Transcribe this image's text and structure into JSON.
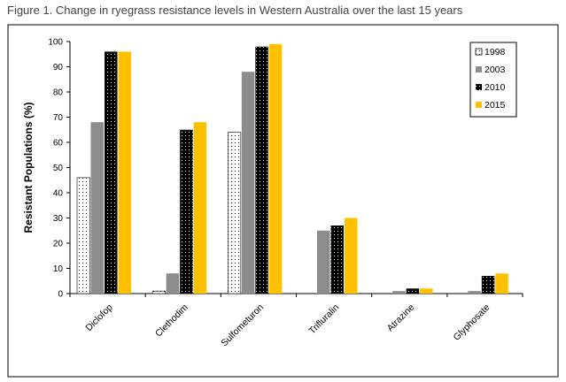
{
  "caption": "Figure 1. Change in ryegrass resistance levels in Western Australia over the last 15 years",
  "chart_data": {
    "type": "bar",
    "title": "",
    "xlabel": "",
    "ylabel": "Resistant Populations (%)",
    "ylim": [
      0,
      100
    ],
    "yticks": [
      0,
      10,
      20,
      30,
      40,
      50,
      60,
      70,
      80,
      90,
      100
    ],
    "categories": [
      "Diclofop",
      "Clethodim",
      "Sulfometuron",
      "Trifluralin",
      "Atrazine",
      "Glyphosate"
    ],
    "series": [
      {
        "name": "1998",
        "values": [
          46,
          1,
          64,
          0,
          0,
          0
        ],
        "fill": "dots-white",
        "color": "#ffffff"
      },
      {
        "name": "2003",
        "values": [
          68,
          8,
          88,
          25,
          1,
          1
        ],
        "fill": "solid",
        "color": "#8c8c8c"
      },
      {
        "name": "2010",
        "values": [
          96,
          65,
          98,
          27,
          2,
          7
        ],
        "fill": "dots-black",
        "color": "#000000"
      },
      {
        "name": "2015",
        "values": [
          96,
          68,
          99,
          30,
          2,
          8
        ],
        "fill": "solid",
        "color": "#ffc000"
      }
    ],
    "grid": false,
    "legend_position": "top-right"
  }
}
